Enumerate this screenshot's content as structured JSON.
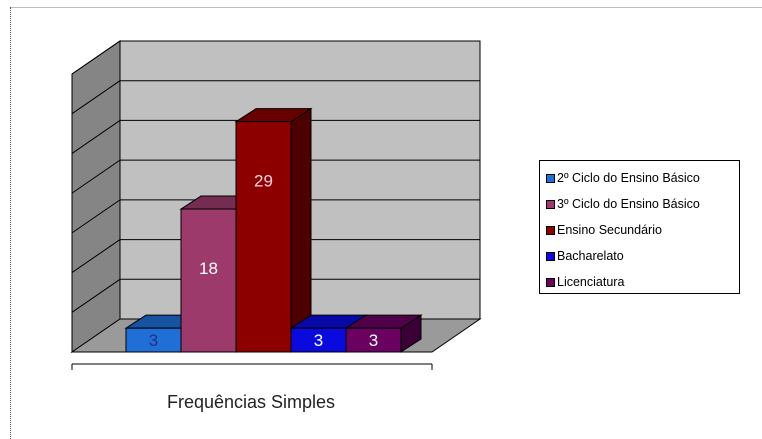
{
  "chart_data": {
    "type": "bar",
    "xlabel": "Frequências Simples",
    "ylim": [
      0,
      35
    ],
    "grid": true,
    "legend_position": "right",
    "series": [
      {
        "name": "2º Ciclo do Ensino Básico",
        "value": 3,
        "color": "#1f6fd6",
        "label_color": "#2a2a8a"
      },
      {
        "name": "3º Ciclo do Ensino Básico",
        "value": 18,
        "color": "#9b3a6b",
        "label_color": "#ffffff"
      },
      {
        "name": "Ensino Secundário",
        "value": 29,
        "color": "#8c0000",
        "label_color": "#ffd0e0"
      },
      {
        "name": "Bacharelato",
        "value": 3,
        "color": "#0a0adf",
        "label_color": "#ffffff"
      },
      {
        "name": "Licenciatura",
        "value": 3,
        "color": "#6a0060",
        "label_color": "#ffffff"
      }
    ]
  }
}
